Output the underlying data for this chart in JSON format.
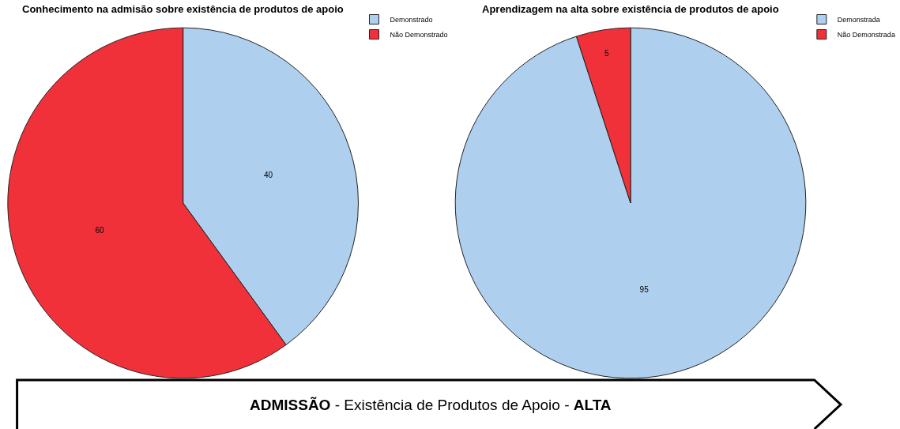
{
  "chart_data": [
    {
      "type": "pie",
      "title": "Conhecimento na admisão sobre existência de produtos de apoio",
      "categories": [
        "Demonstrado",
        "Não Demonstrado"
      ],
      "values": [
        40,
        60
      ],
      "colors": [
        "#aecfee",
        "#f0313a"
      ],
      "data_labels": true,
      "legend": "top right",
      "annotations": [
        "ADMISSÃO - Existência de Produtos de Apoio - ALTA"
      ]
    },
    {
      "type": "pie",
      "title": "Aprendizagem na alta sobre existência de produtos de apoio",
      "categories": [
        "Demonstrada",
        "Não Demonstrada"
      ],
      "values": [
        95,
        5
      ],
      "colors": [
        "#aecfee",
        "#f0313a"
      ],
      "data_labels": true,
      "legend": "top right"
    }
  ]
}
